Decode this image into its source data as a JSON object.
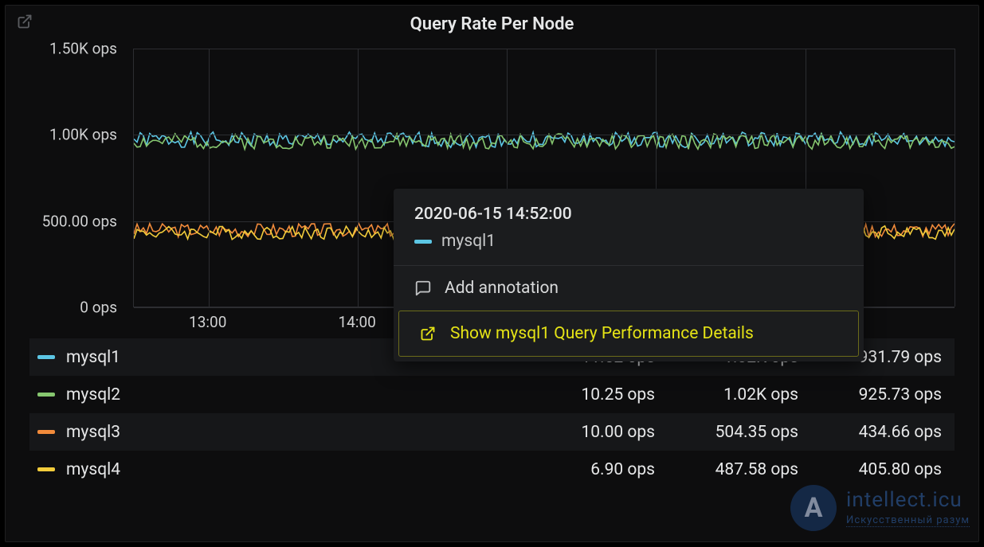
{
  "panel": {
    "title": "Query Rate Per Node"
  },
  "chart": {
    "type": "line",
    "background": "#0d0d0e",
    "grid_color": "#2c2d31",
    "text_color": "#d0d1d2",
    "y_axis": {
      "min": 0,
      "max": 1500,
      "ticks": [
        {
          "value": 0,
          "label": "0 ops"
        },
        {
          "value": 500,
          "label": "500.00 ops"
        },
        {
          "value": 1000,
          "label": "1.00K ops"
        },
        {
          "value": 1500,
          "label": "1.50K ops"
        }
      ],
      "unit": "ops",
      "fontsize": 19
    },
    "x_axis": {
      "start_min": 750,
      "end_min": 1080,
      "ticks": [
        {
          "min": 780,
          "label": "13:00"
        },
        {
          "min": 840,
          "label": "14:00"
        }
      ],
      "grid_spacing_min": 60,
      "grid_start_min": 780,
      "fontsize": 19
    },
    "series": [
      {
        "id": "mysql1",
        "label": "mysql1",
        "color": "#5cc6e4",
        "mean": 970,
        "jitter": 45,
        "seed": 1
      },
      {
        "id": "mysql2",
        "label": "mysql2",
        "color": "#86c66f",
        "mean": 960,
        "jitter": 45,
        "seed": 2
      },
      {
        "id": "mysql3",
        "label": "mysql3",
        "color": "#f28b3b",
        "mean": 445,
        "jitter": 40,
        "seed": 3
      },
      {
        "id": "mysql4",
        "label": "mysql4",
        "color": "#f2cc3b",
        "mean": 430,
        "jitter": 40,
        "seed": 4
      }
    ],
    "line_width": 1.6
  },
  "tooltip": {
    "timestamp": "2020-06-15 14:52:00",
    "series_label": "mysql1",
    "series_color": "#5cc6e4",
    "actions": {
      "annotate": "Add annotation",
      "details": "Show mysql1 Query Performance Details"
    }
  },
  "legend": {
    "rows": [
      {
        "swatch": "#5cc6e4",
        "label": "mysql1",
        "col1": "11.52 ops",
        "col2": "1.02K ops",
        "col3": "931.79 ops"
      },
      {
        "swatch": "#86c66f",
        "label": "mysql2",
        "col1": "10.25 ops",
        "col2": "1.02K ops",
        "col3": "925.73 ops"
      },
      {
        "swatch": "#f28b3b",
        "label": "mysql3",
        "col1": "10.00 ops",
        "col2": "504.35 ops",
        "col3": "434.66 ops"
      },
      {
        "swatch": "#f2cc3b",
        "label": "mysql4",
        "col1": "6.90 ops",
        "col2": "487.58 ops",
        "col3": "405.80 ops"
      }
    ]
  },
  "watermark": {
    "logo_text": "A",
    "line1": "intellect.icu",
    "line2": "Искусственный разум"
  }
}
